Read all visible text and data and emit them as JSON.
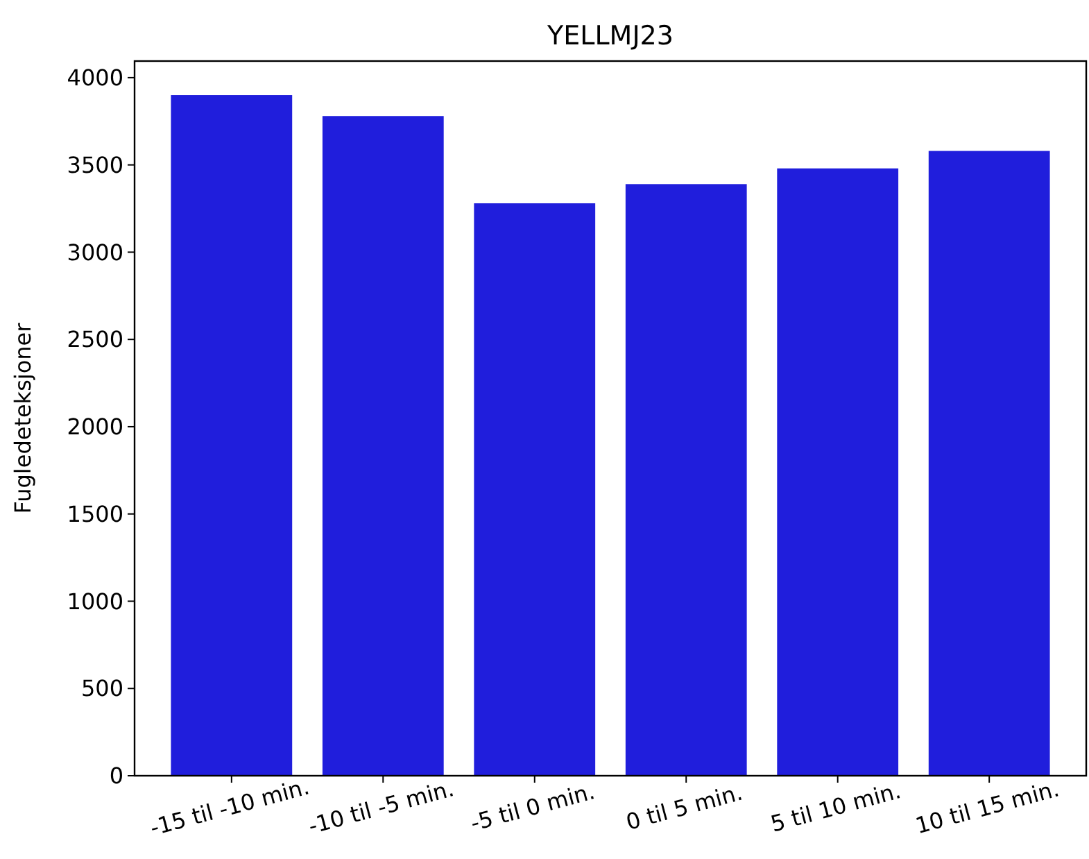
{
  "chart_data": {
    "type": "bar",
    "title": "YELLMJ23",
    "ylabel": "Fugledeteksjoner",
    "categories": [
      "-15 til -10 min.",
      "-10 til -5 min.",
      "-5 til 0 min.",
      "0 til 5 min.",
      "5 til 10 min.",
      "10 til 15 min."
    ],
    "values": [
      3900,
      3780,
      3280,
      3390,
      3480,
      3580
    ],
    "color": "#201edc",
    "ylim": [
      0,
      4095
    ],
    "yticks": [
      0,
      500,
      1000,
      1500,
      2000,
      2500,
      3000,
      3500,
      4000
    ]
  }
}
